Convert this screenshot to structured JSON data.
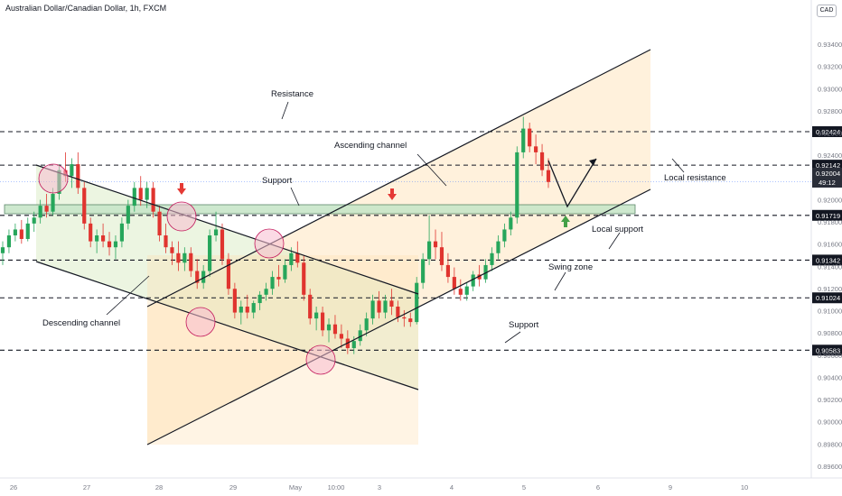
{
  "header": {
    "title": "Australian Dollar/Canadian Dollar, 1h, FXCM"
  },
  "currency": "CAD",
  "chart_data": {
    "type": "candlestick",
    "title": "Australian Dollar/Canadian Dollar, 1h, FXCM",
    "y_ticks": [
      "0.89600",
      "0.89800",
      "0.90000",
      "0.90200",
      "0.90400",
      "0.90600",
      "0.90800",
      "0.91000",
      "0.91200",
      "0.91400",
      "0.91600",
      "0.91800",
      "0.92000",
      "0.92200",
      "0.92400",
      "0.92600",
      "0.92800",
      "0.93000",
      "0.93200",
      "0.93400"
    ],
    "x_ticks": [
      "26",
      "27",
      "28",
      "29",
      "May",
      "10:00",
      "3",
      "4",
      "5",
      "6",
      "9",
      "10"
    ],
    "levels": [
      {
        "label": "0.92424",
        "value": 0.92424,
        "style": "dashed"
      },
      {
        "label": "0.92142",
        "value": 0.92142,
        "style": "dashed"
      },
      {
        "label": "0.91719",
        "value": 0.91719,
        "style": "dashed"
      },
      {
        "label": "0.91342",
        "value": 0.91342,
        "style": "dashed"
      },
      {
        "label": "0.91024",
        "value": 0.91024,
        "style": "dashed"
      },
      {
        "label": "0.90583",
        "value": 0.90583,
        "style": "dashed"
      }
    ],
    "current_price": {
      "label": "0.92004",
      "timer": "49:12",
      "value": 0.92004
    },
    "annotations": [
      "Resistance",
      "Ascending channel",
      "Support",
      "Local resistance",
      "Local support",
      "Swing zone",
      "Descending channel",
      "Support"
    ],
    "ohlc": [
      [
        0.914,
        0.915,
        0.913,
        0.9145
      ],
      [
        0.9145,
        0.916,
        0.914,
        0.9155
      ],
      [
        0.9155,
        0.9165,
        0.915,
        0.916
      ],
      [
        0.916,
        0.9168,
        0.9148,
        0.9152
      ],
      [
        0.9152,
        0.917,
        0.915,
        0.9165
      ],
      [
        0.9165,
        0.9175,
        0.9158,
        0.917
      ],
      [
        0.917,
        0.9185,
        0.9165,
        0.918
      ],
      [
        0.918,
        0.919,
        0.917,
        0.9175
      ],
      [
        0.9175,
        0.9195,
        0.9172,
        0.919
      ],
      [
        0.919,
        0.9215,
        0.9185,
        0.921
      ],
      [
        0.921,
        0.9225,
        0.92,
        0.9205
      ],
      [
        0.9205,
        0.922,
        0.9195,
        0.9215
      ],
      [
        0.9215,
        0.9225,
        0.919,
        0.9195
      ],
      [
        0.9195,
        0.92,
        0.916,
        0.9165
      ],
      [
        0.9165,
        0.917,
        0.9145,
        0.915
      ],
      [
        0.915,
        0.916,
        0.914,
        0.9155
      ],
      [
        0.9155,
        0.9165,
        0.9145,
        0.915
      ],
      [
        0.915,
        0.9158,
        0.9138,
        0.9145
      ],
      [
        0.9145,
        0.9155,
        0.9135,
        0.915
      ],
      [
        0.915,
        0.917,
        0.9145,
        0.9165
      ],
      [
        0.9165,
        0.9185,
        0.916,
        0.918
      ],
      [
        0.918,
        0.92,
        0.9175,
        0.9195
      ],
      [
        0.9195,
        0.9205,
        0.918,
        0.9185
      ],
      [
        0.9185,
        0.92,
        0.9178,
        0.9195
      ],
      [
        0.9195,
        0.92,
        0.917,
        0.9175
      ],
      [
        0.9175,
        0.918,
        0.915,
        0.9155
      ],
      [
        0.9155,
        0.9165,
        0.914,
        0.9145
      ],
      [
        0.9145,
        0.915,
        0.913,
        0.914
      ],
      [
        0.914,
        0.915,
        0.9125,
        0.9132
      ],
      [
        0.9132,
        0.9145,
        0.9125,
        0.914
      ],
      [
        0.914,
        0.9145,
        0.912,
        0.9125
      ],
      [
        0.9125,
        0.9135,
        0.911,
        0.9115
      ],
      [
        0.9115,
        0.913,
        0.911,
        0.9125
      ],
      [
        0.9125,
        0.916,
        0.912,
        0.9155
      ],
      [
        0.9155,
        0.9175,
        0.915,
        0.916
      ],
      [
        0.916,
        0.9165,
        0.913,
        0.9135
      ],
      [
        0.9135,
        0.914,
        0.9105,
        0.911
      ],
      [
        0.911,
        0.9115,
        0.9085,
        0.909
      ],
      [
        0.909,
        0.91,
        0.908,
        0.9095
      ],
      [
        0.9095,
        0.9105,
        0.9085,
        0.909
      ],
      [
        0.909,
        0.91,
        0.9085,
        0.9098
      ],
      [
        0.9098,
        0.9108,
        0.9092,
        0.9105
      ],
      [
        0.9105,
        0.9115,
        0.91,
        0.911
      ],
      [
        0.911,
        0.9125,
        0.9105,
        0.912
      ],
      [
        0.912,
        0.913,
        0.9112,
        0.9118
      ],
      [
        0.9118,
        0.9135,
        0.9115,
        0.913
      ],
      [
        0.913,
        0.9145,
        0.9125,
        0.914
      ],
      [
        0.914,
        0.915,
        0.9128,
        0.9132
      ],
      [
        0.9132,
        0.9138,
        0.91,
        0.9105
      ],
      [
        0.9105,
        0.911,
        0.908,
        0.9085
      ],
      [
        0.9085,
        0.9095,
        0.9075,
        0.909
      ],
      [
        0.909,
        0.9095,
        0.907,
        0.9075
      ],
      [
        0.9075,
        0.9085,
        0.9065,
        0.908
      ],
      [
        0.908,
        0.9088,
        0.9068,
        0.9072
      ],
      [
        0.9072,
        0.908,
        0.906,
        0.9068
      ],
      [
        0.9068,
        0.9075,
        0.9055,
        0.906
      ],
      [
        0.906,
        0.907,
        0.9055,
        0.9066
      ],
      [
        0.9066,
        0.908,
        0.9062,
        0.9075
      ],
      [
        0.9075,
        0.909,
        0.907,
        0.9085
      ],
      [
        0.9085,
        0.9105,
        0.908,
        0.91
      ],
      [
        0.91,
        0.9108,
        0.9085,
        0.909
      ],
      [
        0.909,
        0.9105,
        0.9085,
        0.91
      ],
      [
        0.91,
        0.911,
        0.9088,
        0.9095
      ],
      [
        0.9095,
        0.91,
        0.9082,
        0.9086
      ],
      [
        0.9086,
        0.9092,
        0.9078,
        0.9085
      ],
      [
        0.9085,
        0.909,
        0.9078,
        0.9082
      ],
      [
        0.9082,
        0.912,
        0.908,
        0.9115
      ],
      [
        0.9115,
        0.914,
        0.911,
        0.9135
      ],
      [
        0.9135,
        0.9172,
        0.913,
        0.915
      ],
      [
        0.915,
        0.916,
        0.9135,
        0.9145
      ],
      [
        0.9145,
        0.9158,
        0.9125,
        0.913
      ],
      [
        0.913,
        0.914,
        0.9115,
        0.912
      ],
      [
        0.912,
        0.9128,
        0.9105,
        0.911
      ],
      [
        0.911,
        0.9118,
        0.91,
        0.9105
      ],
      [
        0.9105,
        0.9115,
        0.91,
        0.9112
      ],
      [
        0.9112,
        0.9125,
        0.9108,
        0.9122
      ],
      [
        0.9122,
        0.913,
        0.9112,
        0.9118
      ],
      [
        0.9118,
        0.9135,
        0.9115,
        0.913
      ],
      [
        0.913,
        0.9145,
        0.9125,
        0.914
      ],
      [
        0.914,
        0.9155,
        0.9135,
        0.915
      ],
      [
        0.915,
        0.9165,
        0.9145,
        0.916
      ],
      [
        0.916,
        0.9175,
        0.9155,
        0.917
      ],
      [
        0.917,
        0.923,
        0.9165,
        0.9225
      ],
      [
        0.9225,
        0.9255,
        0.922,
        0.9245
      ],
      [
        0.9245,
        0.925,
        0.9225,
        0.923
      ],
      [
        0.923,
        0.924,
        0.9215,
        0.9225
      ],
      [
        0.9225,
        0.9232,
        0.9205,
        0.921
      ],
      [
        0.921,
        0.922,
        0.9195,
        0.92
      ]
    ]
  }
}
